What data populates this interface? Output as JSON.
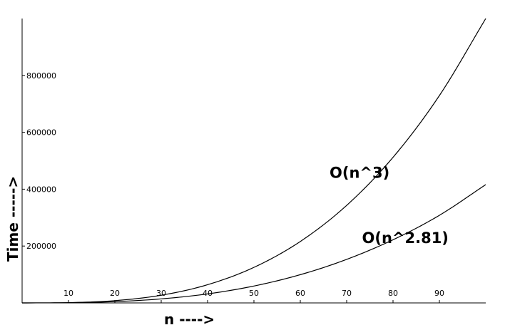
{
  "chart_data": {
    "type": "line",
    "title": "",
    "xlabel": "n ---->",
    "ylabel": "Time ----->",
    "xlim": [
      0,
      100
    ],
    "ylim": [
      0,
      1000000
    ],
    "grid": false,
    "x_ticks": [
      {
        "value": 10,
        "label": "10"
      },
      {
        "value": 20,
        "label": "20"
      },
      {
        "value": 30,
        "label": "30"
      },
      {
        "value": 40,
        "label": "40"
      },
      {
        "value": 50,
        "label": "50"
      },
      {
        "value": 60,
        "label": "60"
      },
      {
        "value": 70,
        "label": "70"
      },
      {
        "value": 80,
        "label": "80"
      },
      {
        "value": 90,
        "label": "90"
      }
    ],
    "y_ticks": [
      {
        "value": 200000,
        "label": "200000"
      },
      {
        "value": 400000,
        "label": "400000"
      },
      {
        "value": 600000,
        "label": "600000"
      },
      {
        "value": 800000,
        "label": "800000"
      }
    ],
    "series": [
      {
        "name": "O(n^3)",
        "x": [
          0,
          10,
          20,
          30,
          40,
          50,
          60,
          70,
          80,
          90,
          100
        ],
        "values": [
          0,
          1000,
          8000,
          27000,
          64000,
          125000,
          216000,
          343000,
          512000,
          729000,
          1000000
        ]
      },
      {
        "name": "O(n^2.81)",
        "x": [
          0,
          10,
          20,
          30,
          40,
          50,
          60,
          70,
          80,
          90,
          100
        ],
        "values": [
          0,
          646,
          4530,
          14200,
          31700,
          59400,
          99300,
          153000,
          222000,
          308000,
          416000
        ]
      }
    ],
    "annotations": [
      {
        "text": "O(n^3)",
        "x": 70,
        "y": 460000
      },
      {
        "text": "O(n^2.81)",
        "x": 77,
        "y": 230000
      }
    ]
  }
}
